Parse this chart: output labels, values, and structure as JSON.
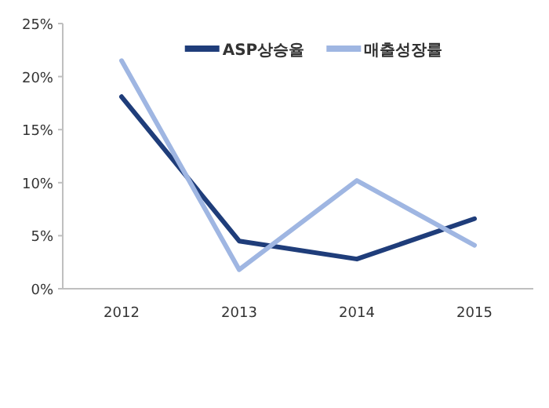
{
  "chart_data": {
    "type": "line",
    "categories": [
      "2012",
      "2013",
      "2014",
      "2015"
    ],
    "series": [
      {
        "name": "ASP상승율",
        "color": "#1f3d7a",
        "values": [
          18.1,
          4.5,
          2.8,
          6.6
        ]
      },
      {
        "name": "매출성장률",
        "color": "#9fb6e2",
        "values": [
          21.5,
          1.8,
          10.2,
          4.1
        ]
      }
    ],
    "ylim": [
      0,
      25
    ],
    "yticks": [
      {
        "value": 0,
        "label": "0%"
      },
      {
        "value": 5,
        "label": "5%"
      },
      {
        "value": 10,
        "label": "10%"
      },
      {
        "value": 15,
        "label": "15%"
      },
      {
        "value": 20,
        "label": "20%"
      },
      {
        "value": 25,
        "label": "25%"
      }
    ],
    "grid": false,
    "legend": "top",
    "marker": "none",
    "line_style": "solid"
  }
}
